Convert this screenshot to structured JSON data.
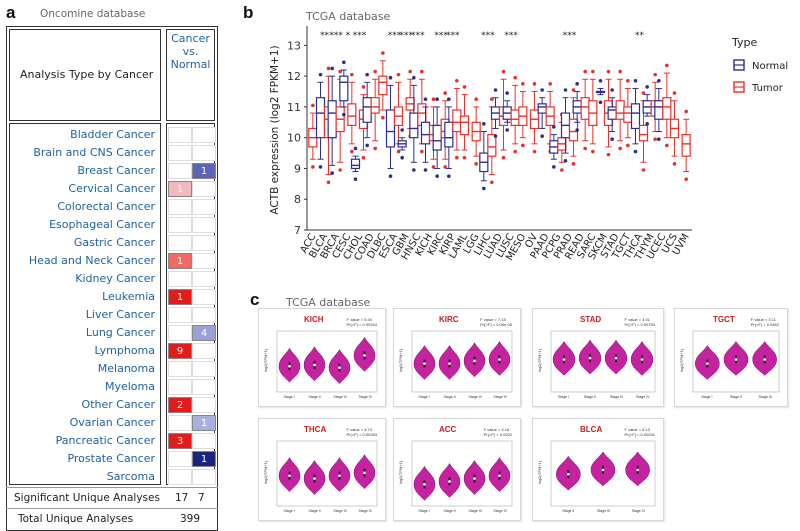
{
  "panel_a": {
    "letter": "a",
    "subtitle": "Oncomine database",
    "header_left": "Analysis Type by Cancer",
    "header_right": [
      "Cancer",
      "vs.",
      "Normal"
    ],
    "cancers": [
      {
        "name": "Bladder Cancer",
        "up": "",
        "down": ""
      },
      {
        "name": "Brain and CNS Cancer",
        "up": "",
        "down": ""
      },
      {
        "name": "Breast Cancer",
        "up": "",
        "down": "1"
      },
      {
        "name": "Cervical Cancer",
        "up": "1",
        "down": ""
      },
      {
        "name": "Colorectal Cancer",
        "up": "",
        "down": ""
      },
      {
        "name": "Esophageal Cancer",
        "up": "",
        "down": ""
      },
      {
        "name": "Gastric Cancer",
        "up": "",
        "down": ""
      },
      {
        "name": "Head and Neck Cancer",
        "up": "1",
        "down": ""
      },
      {
        "name": "Kidney Cancer",
        "up": "",
        "down": ""
      },
      {
        "name": "Leukemia",
        "up": "1",
        "down": ""
      },
      {
        "name": "Liver Cancer",
        "up": "",
        "down": ""
      },
      {
        "name": "Lung Cancer",
        "up": "",
        "down": "4"
      },
      {
        "name": "Lymphoma",
        "up": "9",
        "down": ""
      },
      {
        "name": "Melanoma",
        "up": "",
        "down": ""
      },
      {
        "name": "Myeloma",
        "up": "",
        "down": ""
      },
      {
        "name": "Other Cancer",
        "up": "2",
        "down": ""
      },
      {
        "name": "Ovarian Cancer",
        "up": "",
        "down": "1"
      },
      {
        "name": "Pancreatic Cancer",
        "up": "3",
        "down": ""
      },
      {
        "name": "Prostate Cancer",
        "up": "",
        "down": "1"
      },
      {
        "name": "Sarcoma",
        "up": "",
        "down": ""
      }
    ],
    "cell_colors": {
      "Breast Cancer": {
        "down": "#5c64b8"
      },
      "Cervical Cancer": {
        "up": "#f3b8bd"
      },
      "Head and Neck Cancer": {
        "up": "#ef6a67"
      },
      "Leukemia": {
        "up": "#e31b1b"
      },
      "Lung Cancer": {
        "down": "#9a9fd6"
      },
      "Lymphoma": {
        "up": "#e31b1b"
      },
      "Other Cancer": {
        "up": "#e31b1b"
      },
      "Ovarian Cancer": {
        "down": "#aab0dd"
      },
      "Pancreatic Cancer": {
        "up": "#e31b1b"
      },
      "Prostate Cancer": {
        "down": "#1a237e"
      }
    },
    "significant_label": "Significant Unique Analyses",
    "significant_up": "17",
    "significant_down": "7",
    "total_label": "Total Unique Analyses",
    "total": "399"
  },
  "panel_b": {
    "letter": "b",
    "subtitle": "TCGA database",
    "chart_data": {
      "type": "box",
      "title": "TCGA database",
      "ylabel": "ACTB expression (log2 FPKM+1)",
      "ylim": [
        7,
        13.5
      ],
      "yticks": [
        "7",
        "8",
        "9",
        "10",
        "11",
        "12",
        "13"
      ],
      "categories": [
        "ACC",
        "BLCA",
        "BRCA",
        "CESC",
        "CHOL",
        "COAD",
        "DLBC",
        "ESCA",
        "GBM",
        "HNSC",
        "KICH",
        "KIRC",
        "KIRP",
        "LAML",
        "LGG",
        "LIHC",
        "LUAD",
        "LUSC",
        "MESO",
        "OV",
        "PAAD",
        "PCPG",
        "PRAD",
        "READ",
        "SARC",
        "SKCM",
        "STAD",
        "TGCT",
        "THCA",
        "THYM",
        "UCEC",
        "UCS",
        "UVM"
      ],
      "significance": [
        "",
        "**",
        "***",
        "*",
        "***",
        "",
        "",
        "***",
        "***",
        "***",
        "",
        "***",
        "***",
        "",
        "",
        "***",
        "",
        "***",
        "",
        "",
        "",
        "",
        "***",
        "",
        "",
        "",
        "",
        "",
        "**",
        "",
        "",
        "",
        ""
      ],
      "legend": {
        "title": "Type",
        "entries": [
          "Normal",
          "Tumor"
        ]
      },
      "series": [
        {
          "name": "Normal",
          "boxes": [
            null,
            [
              9.3,
              10.0,
              10.8,
              11.3,
              11.8
            ],
            [
              9.1,
              10.0,
              10.8,
              11.2,
              12.0
            ],
            [
              11.0,
              11.2,
              11.8,
              12.0,
              12.2
            ],
            [
              8.9,
              9.0,
              9.1,
              9.3,
              9.4
            ],
            [
              10.0,
              10.5,
              11.0,
              11.3,
              11.8
            ],
            null,
            [
              9.0,
              9.7,
              10.2,
              10.9,
              11.7
            ],
            [
              9.6,
              9.7,
              9.8,
              9.9,
              10.0
            ],
            [
              9.2,
              10.0,
              10.3,
              10.8,
              11.7
            ],
            [
              9.2,
              9.8,
              10.1,
              10.5,
              11.0
            ],
            [
              9.0,
              9.6,
              9.9,
              10.4,
              11.0
            ],
            [
              9.0,
              9.7,
              10.0,
              10.5,
              11.0
            ],
            null,
            null,
            [
              8.6,
              8.9,
              9.2,
              9.5,
              10.2
            ],
            [
              10.3,
              10.6,
              10.8,
              11.0,
              11.3
            ],
            [
              10.5,
              10.6,
              10.8,
              11.0,
              11.2
            ],
            null,
            null,
            [
              10.3,
              10.8,
              11.0,
              11.1,
              11.3
            ],
            [
              9.3,
              9.5,
              9.7,
              9.9,
              10.1
            ],
            [
              9.5,
              10.0,
              10.4,
              10.8,
              11.3
            ],
            [
              10.5,
              10.8,
              11.0,
              11.2,
              11.5
            ],
            null,
            [
              11.4,
              11.5,
              11.5,
              11.5,
              11.6
            ],
            [
              10.2,
              10.6,
              10.9,
              11.0,
              11.3
            ],
            null,
            [
              9.8,
              10.3,
              10.8,
              11.1,
              11.6
            ],
            [
              10.7,
              10.8,
              11.0,
              11.2,
              11.4
            ],
            [
              10.2,
              10.6,
              11.0,
              11.2,
              11.6
            ],
            null,
            null
          ]
        },
        {
          "name": "Tumor",
          "boxes": [
            [
              9.3,
              9.7,
              10.0,
              10.3,
              10.8
            ],
            [
              8.8,
              10.0,
              10.6,
              11.0,
              12.0
            ],
            [
              9.2,
              10.2,
              10.6,
              11.0,
              11.9
            ],
            [
              9.8,
              10.4,
              10.7,
              11.1,
              11.8
            ],
            [
              9.6,
              10.3,
              10.6,
              10.9,
              11.4
            ],
            [
              9.9,
              10.8,
              11.0,
              11.3,
              11.9
            ],
            [
              10.9,
              11.4,
              11.8,
              12.0,
              12.5
            ],
            [
              9.8,
              10.4,
              10.7,
              11.0,
              11.8
            ],
            [
              10.3,
              10.9,
              11.1,
              11.3,
              11.9
            ],
            [
              9.8,
              10.4,
              10.8,
              11.1,
              11.9
            ],
            [
              9.3,
              9.9,
              10.1,
              10.4,
              11.0
            ],
            [
              9.3,
              10.0,
              10.2,
              10.6,
              11.2
            ],
            [
              9.6,
              10.2,
              10.5,
              10.9,
              11.6
            ],
            [
              9.6,
              10.1,
              10.5,
              10.7,
              11.4
            ],
            [
              9.4,
              9.9,
              10.2,
              10.5,
              11.0
            ],
            [
              8.8,
              9.4,
              9.7,
              10.1,
              11.0
            ],
            [
              9.6,
              10.4,
              10.7,
              11.0,
              11.9
            ],
            [
              9.8,
              10.4,
              10.6,
              10.9,
              11.7
            ],
            [
              10.0,
              10.4,
              10.7,
              11.0,
              11.5
            ],
            [
              9.8,
              10.3,
              10.6,
              10.9,
              11.5
            ],
            [
              9.8,
              10.4,
              10.7,
              11.0,
              11.5
            ],
            [
              9.2,
              9.6,
              9.8,
              10.0,
              10.5
            ],
            [
              9.4,
              9.9,
              10.2,
              10.6,
              11.3
            ],
            [
              9.9,
              10.6,
              11.0,
              11.3,
              11.9
            ],
            [
              9.8,
              10.4,
              10.8,
              11.2,
              11.9
            ],
            [
              9.7,
              10.4,
              10.8,
              11.2,
              11.9
            ],
            [
              9.9,
              10.6,
              10.8,
              11.2,
              11.9
            ],
            [
              10.0,
              10.5,
              10.8,
              11.0,
              11.6
            ],
            [
              9.2,
              9.9,
              10.1,
              10.4,
              11.2
            ],
            [
              10.2,
              10.7,
              11.0,
              11.2,
              11.8
            ],
            [
              10.0,
              10.6,
              11.0,
              11.3,
              12.1
            ],
            [
              9.4,
              10.0,
              10.3,
              10.6,
              11.2
            ],
            [
              8.9,
              9.4,
              9.8,
              10.1,
              10.6
            ]
          ]
        }
      ]
    }
  },
  "panel_c": {
    "letter": "c",
    "subtitle": "TCGA database",
    "ylabel": "log2(TPM+1)",
    "plots": [
      {
        "title": "KICH",
        "stat1": "F value = 5.34",
        "stat2": "Pr(>F) = 0.00244",
        "stages": [
          "Stage I",
          "Stage II",
          "Stage III",
          "Stage IV"
        ],
        "medians": [
          10.4,
          10.5,
          10.3,
          11.2
        ]
      },
      {
        "title": "KIRC",
        "stat1": "F value = 7.18",
        "stat2": "Pr(>F) = 9.06e-05",
        "stages": [
          "Stage I",
          "Stage II",
          "Stage III",
          "Stage IV"
        ],
        "medians": [
          10.6,
          10.6,
          10.8,
          10.9
        ]
      },
      {
        "title": "STAD",
        "stat1": "F value = 4.01",
        "stat2": "Pr(>F) = 0.00783",
        "stages": [
          "Stage I",
          "Stage II",
          "Stage III",
          "Stage IV"
        ],
        "medians": [
          10.9,
          11.0,
          11.0,
          10.9
        ]
      },
      {
        "title": "TGCT",
        "stat1": "F value = 3.11",
        "stat2": "Pr(>F) = 0.0462",
        "stages": [
          "Stage I",
          "Stage II",
          "Stage III"
        ],
        "medians": [
          10.6,
          10.9,
          10.9
        ]
      },
      {
        "title": "THCA",
        "stat1": "F value = 4.74",
        "stat2": "Pr(>F) = 0.00283",
        "stages": [
          "Stage I",
          "Stage II",
          "Stage III",
          "Stage IV"
        ],
        "medians": [
          10.6,
          10.4,
          10.6,
          10.8
        ]
      },
      {
        "title": "ACC",
        "stat1": "F value = 3.16",
        "stat2": "Pr(>F) = 0.0292",
        "stages": [
          "Stage I",
          "Stage II",
          "Stage III",
          "Stage IV"
        ],
        "medians": [
          10.0,
          10.2,
          10.4,
          10.6
        ]
      },
      {
        "title": "BLCA",
        "stat1": "F value = 6.13",
        "stat2": "Pr(>F) = 0.00241",
        "stages": [
          "Stage II",
          "Stage III",
          "Stage IV"
        ],
        "medians": [
          10.7,
          11.0,
          11.0
        ]
      }
    ]
  },
  "colors": {
    "normal": "#2b2f8f",
    "tumor": "#e8312c",
    "violin": "#c5229f",
    "link": "#1f5f9e"
  }
}
